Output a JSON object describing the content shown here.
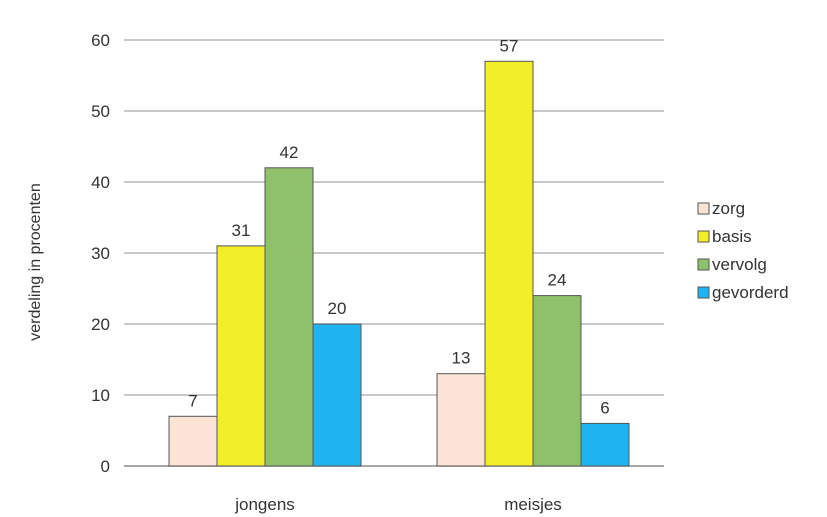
{
  "chart_data": {
    "type": "bar",
    "ylabel": "verdeling in procenten",
    "xlabel": "",
    "ylim": [
      0,
      60
    ],
    "yticks": [
      0,
      10,
      20,
      30,
      40,
      50,
      60
    ],
    "grid": true,
    "legend_position": "right",
    "categories": [
      "jongens",
      "meisjes"
    ],
    "series": [
      {
        "name": "zorg",
        "color": "#fbe3d6",
        "values": [
          7,
          13
        ]
      },
      {
        "name": "basis",
        "color": "#f2ef2a",
        "values": [
          31,
          57
        ]
      },
      {
        "name": "vervolg",
        "color": "#8fc06a",
        "values": [
          42,
          24
        ]
      },
      {
        "name": "gevorderd",
        "color": "#1fb3ef",
        "values": [
          20,
          6
        ]
      }
    ]
  }
}
